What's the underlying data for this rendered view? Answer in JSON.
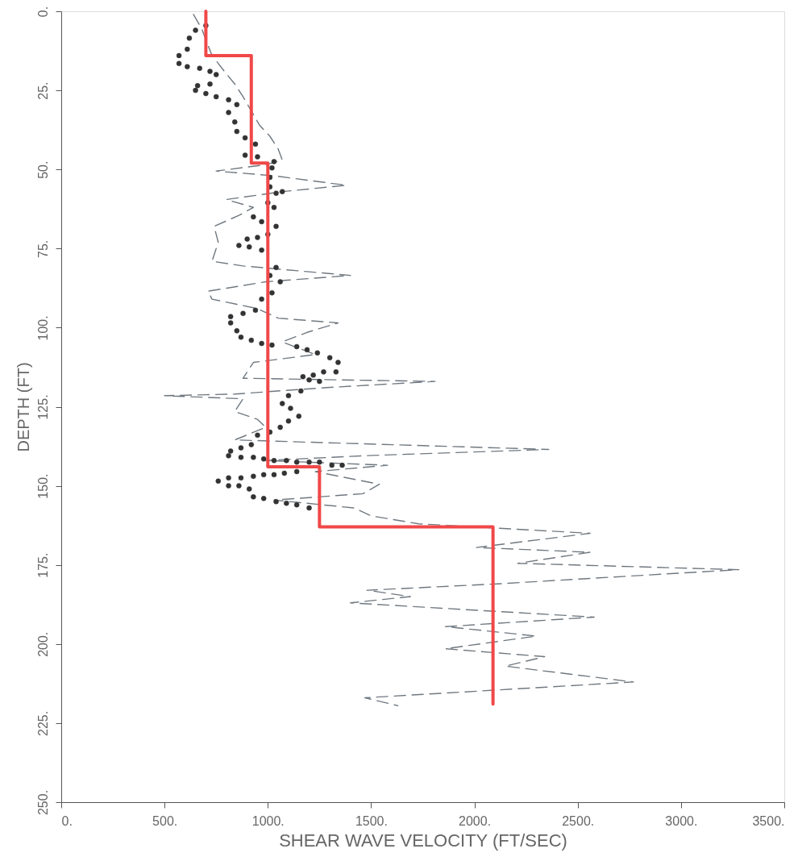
{
  "chart_data": {
    "type": "line",
    "xlabel": "SHEAR WAVE VELOCITY (FT/SEC)",
    "ylabel": "DEPTH (FT)",
    "xlim": [
      0,
      3500
    ],
    "xticks": [
      {
        "value": 0,
        "label": "0."
      },
      {
        "value": 500,
        "label": "500."
      },
      {
        "value": 1000,
        "label": "1000."
      },
      {
        "value": 1500,
        "label": "1500."
      },
      {
        "value": 2000,
        "label": "2000."
      },
      {
        "value": 2500,
        "label": "2500."
      },
      {
        "value": 3000,
        "label": "3000."
      },
      {
        "value": 3500,
        "label": "3500."
      }
    ],
    "ylim": [
      250,
      0
    ],
    "yticks": [
      {
        "value": 0,
        "label": "0."
      },
      {
        "value": 25,
        "label": "25."
      },
      {
        "value": 50,
        "label": "50."
      },
      {
        "value": 75,
        "label": "75."
      },
      {
        "value": 100,
        "label": "100."
      },
      {
        "value": 125,
        "label": "125."
      },
      {
        "value": 150,
        "label": "150."
      },
      {
        "value": 175,
        "label": "175."
      },
      {
        "value": 200,
        "label": "200."
      },
      {
        "value": 225,
        "label": "225."
      },
      {
        "value": 250,
        "label": "250."
      }
    ],
    "grid": false,
    "series": [
      {
        "line_style": "dashed",
        "marker": "none",
        "color": "#6f7880",
        "x": [
          640,
          680,
          700,
          730,
          790,
          840,
          880,
          920,
          960,
          1010,
          1050,
          1070,
          990,
          750,
          1030,
          1380,
          1070,
          800,
          930,
          860,
          740,
          760,
          730,
          880,
          1400,
          990,
          710,
          730,
          950,
          1050,
          1340,
          1190,
          1070,
          1230,
          930,
          880,
          1810,
          1270,
          840,
          500,
          880,
          840,
          950,
          990,
          840,
          2360,
          1460,
          990,
          1580,
          1230,
          1540,
          1460,
          1030,
          1420,
          1500,
          1730,
          2560,
          2010,
          2560,
          2210,
          3280,
          2110,
          1480,
          1690,
          1400,
          2580,
          1860,
          2300,
          1860,
          2340,
          2150,
          2770,
          1470,
          1630
        ],
        "values": [
          1,
          5.5,
          9,
          14,
          19,
          23,
          27,
          31.5,
          36,
          39.5,
          43.5,
          47,
          48.5,
          50.5,
          52,
          55,
          57,
          59.5,
          62,
          64.5,
          68,
          73,
          79,
          80.5,
          83.5,
          85.5,
          88.5,
          91,
          94,
          97,
          98.5,
          101.5,
          104.5,
          108.5,
          111,
          116,
          117,
          119,
          121,
          121.5,
          122.5,
          126.5,
          129,
          131.5,
          135.5,
          138.5,
          140.5,
          142,
          143.5,
          145.5,
          149.5,
          152.5,
          154.5,
          157,
          159.5,
          162,
          165,
          169.5,
          171,
          174.5,
          176.5,
          181,
          183,
          185,
          187,
          191.5,
          194.5,
          197.5,
          201.5,
          204,
          207,
          212,
          217,
          219.5
        ]
      },
      {
        "type": "scatter",
        "marker": "circle",
        "color": "#333333",
        "x": [
          700,
          650,
          620,
          610,
          570,
          570,
          610,
          670,
          720,
          750,
          720,
          660,
          650,
          700,
          750,
          810,
          850,
          810,
          840,
          850,
          890,
          940,
          890,
          950,
          1030,
          1020,
          1010,
          1010,
          1040,
          1070,
          1000,
          1030,
          930,
          970,
          1040,
          900,
          950,
          1000,
          860,
          910,
          970,
          1040,
          1010,
          1060,
          1020,
          970,
          940,
          880,
          820,
          820,
          850,
          870,
          920,
          970,
          1020,
          1140,
          1190,
          1240,
          1300,
          1340,
          1330,
          1270,
          1220,
          1170,
          1200,
          1250,
          1160,
          1100,
          1070,
          1110,
          1150,
          1100,
          1060,
          1010,
          950,
          920,
          870,
          820,
          810,
          870,
          930,
          980,
          1030,
          1090,
          1140,
          1200,
          1250,
          1310,
          1360,
          1140,
          1080,
          1030,
          980,
          930,
          870,
          810,
          760,
          810,
          860,
          910,
          930,
          980,
          1040,
          1090,
          1140,
          1200
        ],
        "values": [
          4.5,
          6,
          8.5,
          12,
          14,
          16.5,
          17.5,
          18,
          19,
          20,
          23,
          23.5,
          25,
          26,
          27,
          28,
          29.5,
          32,
          35,
          38,
          40,
          42,
          45.5,
          46,
          47.5,
          49.5,
          52.5,
          55.5,
          57.5,
          57,
          60.5,
          62,
          65,
          66.5,
          68,
          72,
          71.5,
          70.5,
          74,
          74.5,
          75.5,
          81,
          83.5,
          85.5,
          89,
          91,
          94.5,
          95.5,
          96.5,
          98.5,
          101,
          103,
          104,
          105,
          105.5,
          106,
          107,
          108,
          109.5,
          111,
          114,
          114,
          115,
          115.5,
          116.5,
          117,
          120,
          121.5,
          124,
          125.5,
          128,
          129.5,
          131.5,
          133,
          134,
          137,
          138,
          139,
          140.5,
          141,
          141,
          141.5,
          142,
          142,
          142.5,
          142.5,
          142.5,
          143.5,
          143.5,
          145.5,
          146,
          146.5,
          146.5,
          147,
          147.5,
          147.5,
          148.5,
          150,
          150,
          151,
          153.5,
          154,
          155,
          155.5,
          156,
          157
        ]
      },
      {
        "type": "step",
        "line_style": "solid",
        "marker": "none",
        "color": "#f04848",
        "x": [
          700,
          700,
          920,
          920,
          1000,
          1000,
          1250,
          1250,
          2090,
          2090
        ],
        "values": [
          0,
          14,
          14,
          48,
          48,
          144,
          144,
          163,
          163,
          219
        ]
      }
    ]
  }
}
